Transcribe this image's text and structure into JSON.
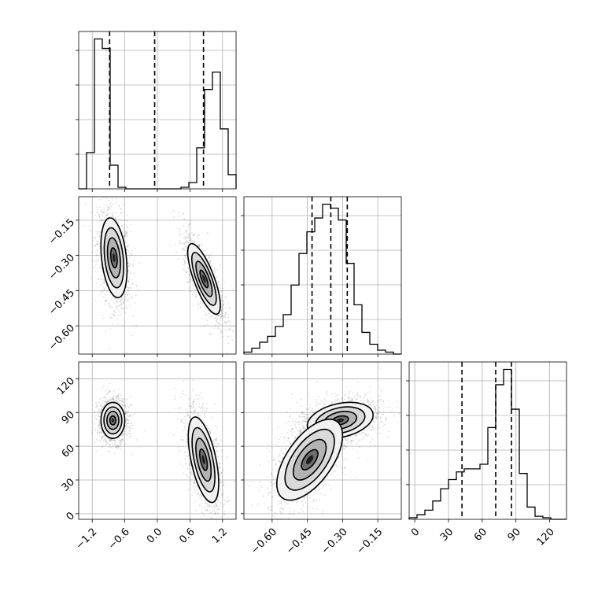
{
  "chart_data": {
    "type": "corner",
    "parameters": [
      "p0",
      "p1",
      "p2"
    ],
    "grid": true,
    "axes": {
      "p0": {
        "range": [
          -1.45,
          1.45
        ],
        "ticks": [
          -1.2,
          -0.6,
          0.0,
          0.6,
          1.2
        ],
        "tick_labels": [
          "−1.2",
          "−0.6",
          "0.0",
          "0.6",
          "1.2"
        ]
      },
      "p1": {
        "range": [
          -0.72,
          -0.05
        ],
        "ticks": [
          -0.6,
          -0.45,
          -0.3,
          -0.15
        ],
        "tick_labels": [
          "−0.60",
          "−0.45",
          "−0.30",
          "−0.15"
        ]
      },
      "p2": {
        "range": [
          -5,
          135
        ],
        "ticks": [
          0,
          30,
          60,
          90,
          120
        ],
        "tick_labels": [
          "0",
          "30",
          "60",
          "90",
          "120"
        ]
      }
    },
    "histograms": {
      "p0": {
        "quantiles": [
          -0.88,
          -0.05,
          0.85
        ],
        "edges": [
          -1.45,
          -1.305,
          -1.16,
          -1.015,
          -0.87,
          -0.725,
          -0.58,
          -0.435,
          -0.29,
          -0.145,
          0.0,
          0.145,
          0.29,
          0.435,
          0.58,
          0.725,
          0.87,
          1.015,
          1.16,
          1.305,
          1.45
        ],
        "counts": [
          0,
          0.23,
          0.95,
          0.89,
          0.15,
          0.01,
          0,
          0,
          0,
          0,
          0,
          0,
          0,
          0.01,
          0.04,
          0.26,
          0.63,
          0.74,
          0.38,
          0.09
        ]
      },
      "p1": {
        "quantiles": [
          -0.43,
          -0.35,
          -0.28
        ],
        "edges": [
          -0.72,
          -0.6865,
          -0.653,
          -0.6195,
          -0.586,
          -0.5525,
          -0.519,
          -0.4855,
          -0.452,
          -0.4185,
          -0.385,
          -0.3515,
          -0.318,
          -0.2845,
          -0.251,
          -0.2175,
          -0.184,
          -0.1505,
          -0.117,
          -0.0835,
          -0.05
        ],
        "counts": [
          0.01,
          0.03,
          0.06,
          0.09,
          0.14,
          0.2,
          0.35,
          0.51,
          0.62,
          0.69,
          0.76,
          0.74,
          0.68,
          0.46,
          0.25,
          0.11,
          0.05,
          0.02,
          0.01,
          0
        ]
      },
      "p2": {
        "quantiles": [
          42,
          72,
          86
        ],
        "edges": [
          -5,
          2,
          9,
          16,
          23,
          30,
          37,
          44,
          51,
          58,
          65,
          72,
          79,
          86,
          93,
          100,
          107,
          114,
          121,
          128,
          135
        ],
        "counts": [
          0.01,
          0.03,
          0.06,
          0.12,
          0.2,
          0.26,
          0.31,
          0.33,
          0.33,
          0.36,
          0.6,
          0.88,
          0.98,
          0.72,
          0.3,
          0.08,
          0.02,
          0.01,
          0,
          0
        ]
      }
    },
    "pairs": [
      {
        "x": "p0",
        "y": "p1",
        "modes": [
          {
            "center": [
              -0.8,
              -0.31
            ],
            "sd": [
              0.12,
              0.085
            ],
            "corr": -0.3
          },
          {
            "center": [
              0.86,
              -0.4
            ],
            "sd": [
              0.15,
              0.075
            ],
            "corr": -0.75
          }
        ]
      },
      {
        "x": "p0",
        "y": "p2",
        "modes": [
          {
            "center": [
              -0.82,
              83
            ],
            "sd": [
              0.11,
              8
            ],
            "corr": 0.0
          },
          {
            "center": [
              0.85,
              48
            ],
            "sd": [
              0.14,
              19
            ],
            "corr": -0.55
          }
        ]
      },
      {
        "x": "p1",
        "y": "p2",
        "modes": [
          {
            "center": [
              -0.31,
              83
            ],
            "sd": [
              0.07,
              8
            ],
            "corr": 0.3
          },
          {
            "center": [
              -0.44,
              48
            ],
            "sd": [
              0.07,
              18
            ],
            "corr": 0.6
          }
        ]
      }
    ]
  }
}
